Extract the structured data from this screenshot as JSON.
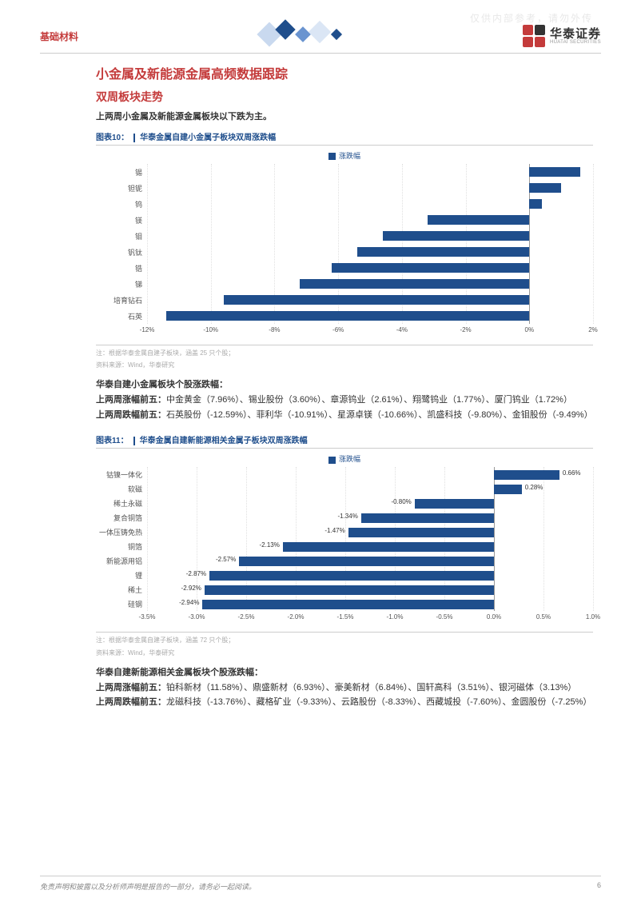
{
  "watermark": "仅供内部参考，请勿外传",
  "header": {
    "category": "基础材料",
    "logo_cn": "华泰证券",
    "logo_en": "HUATAI SECURITIES"
  },
  "section": {
    "h1": "小金属及新能源金属高频数据跟踪",
    "h2": "双周板块走势",
    "intro": "上两周小金属及新能源金属板块以下跌为主。"
  },
  "chart10": {
    "title_no": "图表10：",
    "title": "华泰金属自建小金属子板块双周涨跌幅",
    "legend": "涨跌幅",
    "type": "bar-horizontal",
    "bar_color": "#1f4e8c",
    "grid_color": "#e0e0e0",
    "background_color": "#ffffff",
    "xmin": -12,
    "xmax": 2,
    "xticks": [
      -12,
      -10,
      -8,
      -6,
      -4,
      -2,
      0,
      2
    ],
    "xtick_labels": [
      "-12%",
      "-10%",
      "-8%",
      "-6%",
      "-4%",
      "-2%",
      "0%",
      "2%"
    ],
    "show_values": false,
    "rows": [
      {
        "label": "锡",
        "value": 1.6
      },
      {
        "label": "钽铌",
        "value": 1.0
      },
      {
        "label": "钨",
        "value": 0.4
      },
      {
        "label": "镁",
        "value": -3.2
      },
      {
        "label": "钼",
        "value": -4.6
      },
      {
        "label": "钒钛",
        "value": -5.4
      },
      {
        "label": "锆",
        "value": -6.2
      },
      {
        "label": "锑",
        "value": -7.2
      },
      {
        "label": "培育钻石",
        "value": -9.6
      },
      {
        "label": "石英",
        "value": -11.4
      }
    ],
    "note1": "注：根据华泰金属自建子板块，涵盖 25 只个股；",
    "note2": "资料来源：Wind，华泰研究"
  },
  "para1": {
    "heading": "华泰自建小金属板块个股涨跌幅：",
    "line1_b": "上两周涨幅前五：",
    "line1": "中金黄金（7.96%）、锡业股份（3.60%）、章源钨业（2.61%）、翔鹭钨业（1.77%）、厦门钨业（1.72%）",
    "line2_b": "上两周跌幅前五：",
    "line2": "石英股份（-12.59%）、菲利华（-10.91%）、星源卓镁（-10.66%）、凯盛科技（-9.80%）、金钼股份（-9.49%）"
  },
  "chart11": {
    "title_no": "图表11：",
    "title": "华泰金属自建新能源相关金属子板块双周涨跌幅",
    "legend": "涨跌幅",
    "type": "bar-horizontal",
    "bar_color": "#1f4e8c",
    "grid_color": "#e0e0e0",
    "background_color": "#ffffff",
    "xmin": -3.5,
    "xmax": 1.0,
    "xticks": [
      -3.5,
      -3.0,
      -2.5,
      -2.0,
      -1.5,
      -1.0,
      -0.5,
      0.0,
      0.5,
      1.0
    ],
    "xtick_labels": [
      "-3.5%",
      "-3.0%",
      "-2.5%",
      "-2.0%",
      "-1.5%",
      "-1.0%",
      "-0.5%",
      "0.0%",
      "0.5%",
      "1.0%"
    ],
    "show_values": true,
    "rows": [
      {
        "label": "钴镍一体化",
        "value": 0.66
      },
      {
        "label": "软磁",
        "value": 0.28
      },
      {
        "label": "稀土永磁",
        "value": -0.8
      },
      {
        "label": "复合铜箔",
        "value": -1.34
      },
      {
        "label": "一体压铸免热",
        "value": -1.47
      },
      {
        "label": "铜箔",
        "value": -2.13
      },
      {
        "label": "新能源用铝",
        "value": -2.57
      },
      {
        "label": "锂",
        "value": -2.87
      },
      {
        "label": "稀土",
        "value": -2.92
      },
      {
        "label": "硅钢",
        "value": -2.94
      }
    ],
    "note1": "注：根据华泰金属自建子板块，涵盖 72 只个股；",
    "note2": "资料来源：Wind，华泰研究"
  },
  "para2": {
    "heading": "华泰自建新能源相关金属板块个股涨跌幅：",
    "line1_b": "上两周涨幅前五：",
    "line1": "铂科新材（11.58%）、鼎盛新材（6.93%）、豪美新材（6.84%）、国轩高科（3.51%）、银河磁体（3.13%）",
    "line2_b": "上两周跌幅前五：",
    "line2": "龙磁科技（-13.76%）、藏格矿业（-9.33%）、云路股份（-8.33%）、西藏城投（-7.60%）、金圆股份（-7.25%）"
  },
  "footer": {
    "disclaimer": "免责声明和披露以及分析师声明是报告的一部分，请务必一起阅读。",
    "page": "6"
  }
}
